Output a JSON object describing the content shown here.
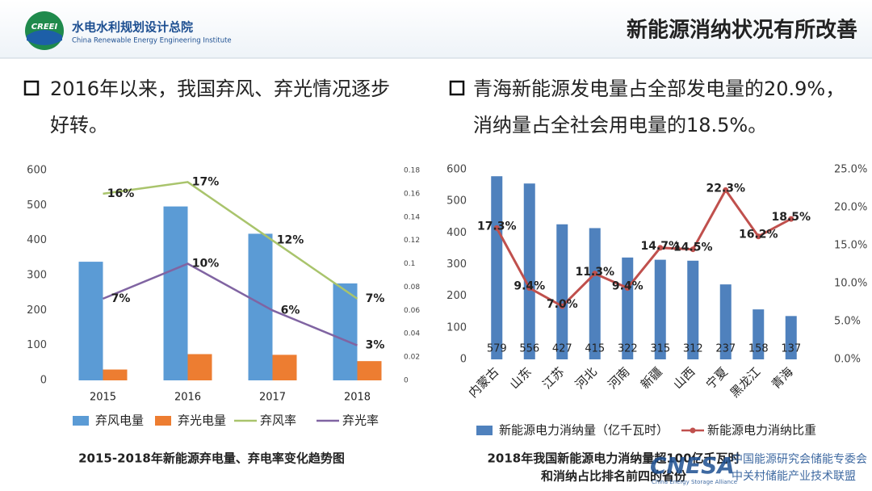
{
  "header": {
    "logo": "CREEI",
    "org_name": "水电水利规划设计总院",
    "org_name_en": "China Renewable Energy Engineering Institute",
    "title": "新能源消纳状况有所改善"
  },
  "bullets": [
    {
      "lines": [
        "2016年以来，我国弃风、弃光情况逐步",
        "好转。"
      ]
    },
    {
      "lines": [
        "青海新能源发电量占全部发电量的20.9%，",
        "消纳量占全社会用电量的18.5%。"
      ]
    }
  ],
  "watermark": {
    "name": "CNESA",
    "cn1": "中国能源研究会储能专委会",
    "cn2": "中关村储能产业技术联盟",
    "en": "China Energy Storage Alliance"
  },
  "chart_data": [
    {
      "type": "bar",
      "title": "2015-2018年新能源弃电量、弃电率变化趋势图",
      "categories": [
        "2015",
        "2016",
        "2017",
        "2018"
      ],
      "series": [
        {
          "name": "弃风电量",
          "color": "#5b9bd5",
          "values": [
            339,
            497,
            419,
            277
          ]
        },
        {
          "name": "弃光电量",
          "color": "#ed7d31",
          "values": [
            31,
            75,
            73,
            55
          ]
        },
        {
          "name": "弃风率",
          "color": "#a9c46c",
          "axis": "y2",
          "values": [
            0.16,
            0.17,
            0.12,
            0.07
          ],
          "value_labels": [
            "16%",
            "17%",
            "12%",
            "7%"
          ]
        },
        {
          "name": "弃光率",
          "color": "#8064a2",
          "axis": "y2",
          "values": [
            0.07,
            0.1,
            0.06,
            0.03
          ],
          "value_labels": [
            "7%",
            "10%",
            "6%",
            "3%"
          ]
        }
      ],
      "ylim": [
        0,
        600
      ],
      "yticks": [
        0,
        100,
        200,
        300,
        400,
        500,
        600
      ],
      "y2lim": [
        0,
        0.18
      ],
      "y2ticks": [
        0,
        0.02,
        0.04,
        0.06,
        0.08,
        0.1,
        0.12,
        0.14,
        0.16,
        0.18
      ]
    },
    {
      "type": "bar",
      "title": [
        "2018年我国新能源电力消纳量超100亿千瓦时",
        "和消纳占比排名前四的省份"
      ],
      "categories": [
        "内蒙古",
        "山东",
        "江苏",
        "河北",
        "河南",
        "新疆",
        "山西",
        "宁夏",
        "黑龙江",
        "青海"
      ],
      "series": [
        {
          "name": "新能源电力消纳量（亿千瓦时）",
          "color": "#4f81bd",
          "data_labels": true,
          "values": [
            579,
            556,
            427,
            415,
            322,
            315,
            312,
            237,
            158,
            137
          ]
        },
        {
          "name": "新能源电力消纳比重",
          "color": "#c0504d",
          "axis": "y2",
          "markers": true,
          "values": [
            17.3,
            9.4,
            7.0,
            11.3,
            9.4,
            14.7,
            14.5,
            22.3,
            16.2,
            18.5
          ],
          "value_labels": [
            "17.3%",
            "9.4%",
            "7.0%",
            "11.3%",
            "9.4%",
            "14.7%",
            "14.5%",
            "22.3%",
            "16.2%",
            "18.5%"
          ]
        }
      ],
      "ylim": [
        0,
        600
      ],
      "yticks": [
        0,
        100,
        200,
        300,
        400,
        500,
        600
      ],
      "y2lim": [
        0,
        25
      ],
      "y2ticks": [
        {
          "value": 0,
          "label": "0.0%"
        },
        {
          "value": 5,
          "label": "5.0%"
        },
        {
          "value": 10,
          "label": "10.0%"
        },
        {
          "value": 15,
          "label": "15.0%"
        },
        {
          "value": 20,
          "label": "20.0%"
        },
        {
          "value": 25,
          "label": "25.0%"
        }
      ]
    }
  ]
}
